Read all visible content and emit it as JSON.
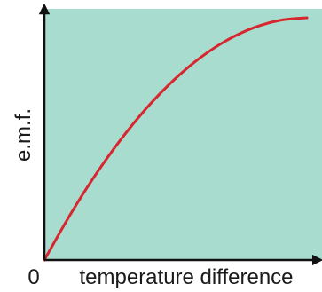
{
  "chart_data": {
    "type": "line",
    "xlabel": "temperature difference",
    "ylabel": "e.m.f.",
    "origin_label": "0",
    "xlim": [
      0,
      1
    ],
    "ylim": [
      0,
      1
    ],
    "grid": false,
    "series": [
      {
        "x": [
          0,
          0.1,
          0.2,
          0.3,
          0.4,
          0.5,
          0.6,
          0.7,
          0.8,
          0.9,
          1.0
        ],
        "y": [
          0,
          0.19,
          0.36,
          0.51,
          0.64,
          0.75,
          0.84,
          0.91,
          0.96,
          0.99,
          1.0
        ]
      }
    ],
    "colors": {
      "plot_background": "#a8dccf",
      "curve": "#d8262e",
      "axis": "#111111"
    }
  }
}
